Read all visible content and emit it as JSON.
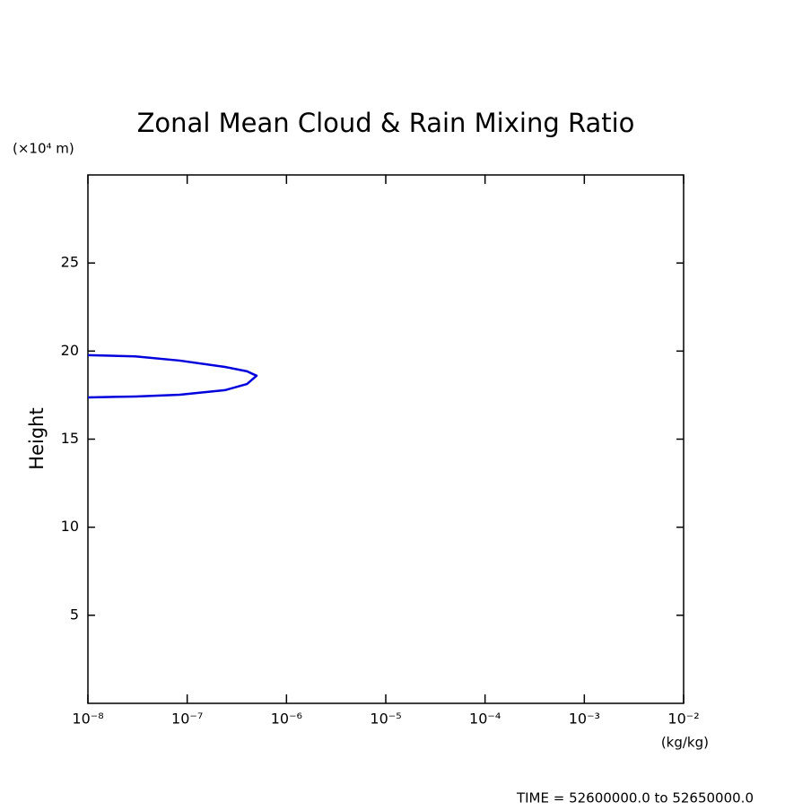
{
  "chart_data": {
    "type": "line",
    "title": "Zonal Mean Cloud & Rain Mixing Ratio",
    "y_unit": "(×10⁴ m)",
    "y_label": "Height",
    "x_unit": "(kg/kg)",
    "footer": "TIME = 52600000.0 to 52650000.0",
    "x_scale": "log",
    "x": [
      1e-08,
      3e-08,
      8.4e-08,
      2.4e-07,
      4e-07,
      5e-07,
      4e-07,
      2.4e-07,
      8.4e-08,
      3e-08,
      1e-08
    ],
    "series": [
      {
        "color": "#0000dd",
        "values": [
          19.77,
          19.7,
          19.46,
          19.1,
          18.85,
          18.6,
          18.13,
          17.78,
          17.52,
          17.42,
          17.37
        ]
      }
    ],
    "xlim": [
      1e-08,
      0.01
    ],
    "xticks": [
      {
        "value": 1e-08,
        "label": "10⁻⁸"
      },
      {
        "value": 1e-07,
        "label": "10⁻⁷"
      },
      {
        "value": 1e-06,
        "label": "10⁻⁶"
      },
      {
        "value": 1e-05,
        "label": "10⁻⁵"
      },
      {
        "value": 0.0001,
        "label": "10⁻⁴"
      },
      {
        "value": 0.001,
        "label": "10⁻³"
      },
      {
        "value": 0.01,
        "label": "10⁻²"
      }
    ],
    "ylim": [
      0,
      30
    ],
    "yticks": [
      5,
      10,
      15,
      20,
      25
    ]
  }
}
